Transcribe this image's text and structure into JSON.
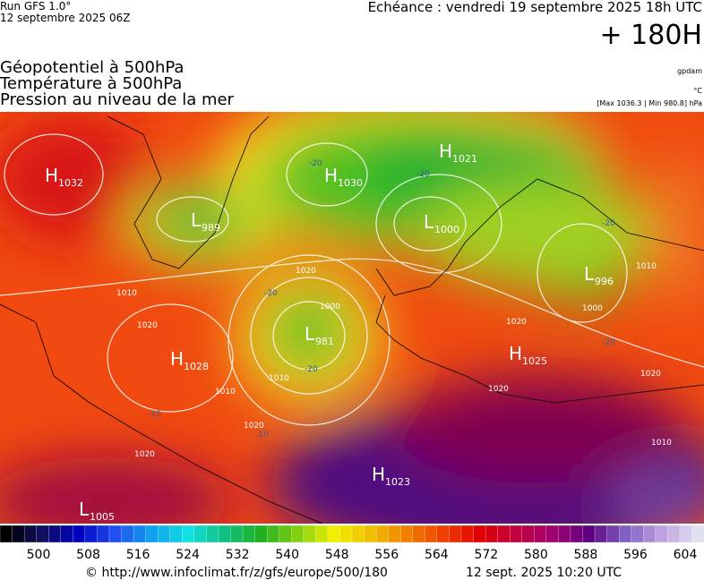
{
  "header": {
    "run": "Run GFS 1.0°",
    "run_date": "12 septembre 2025 06Z",
    "echeance": "Echéance : vendredi 19 septembre 2025 18h UTC",
    "lead": "+ 180H",
    "titles": [
      "Géopotentiel à 500hPa",
      "Température à 500hPa",
      "Pression au niveau de la mer"
    ],
    "unit_geo": "gpdam",
    "unit_temp": "°C",
    "pressure_range": "[Max 1036.3 | Min 980.8] hPa"
  },
  "centers": [
    {
      "kind": "H",
      "value": "1032"
    },
    {
      "kind": "L",
      "value": "989"
    },
    {
      "kind": "H",
      "value": "1030"
    },
    {
      "kind": "H",
      "value": "1021"
    },
    {
      "kind": "L",
      "value": "1000"
    },
    {
      "kind": "L",
      "value": "996"
    },
    {
      "kind": "L",
      "value": "981"
    },
    {
      "kind": "H",
      "value": "1028"
    },
    {
      "kind": "H",
      "value": "1025"
    },
    {
      "kind": "H",
      "value": "1023"
    },
    {
      "kind": "L",
      "value": "1005"
    }
  ],
  "isobar_labels": [
    "1020",
    "1010",
    "1020",
    "1020",
    "1020",
    "1000",
    "1010",
    "1020",
    "1010",
    "1020",
    "1010",
    "1000",
    "1020",
    "1010"
  ],
  "temperature_labels": [
    "-20",
    "-20",
    "-20",
    "-20",
    "-20",
    "-20",
    "-10",
    "-10"
  ],
  "colorbar": {
    "ticks": [
      500,
      508,
      516,
      524,
      532,
      540,
      548,
      556,
      564,
      572,
      580,
      588,
      596,
      604
    ]
  },
  "footer": {
    "source": "© http://www.infoclimat.fr/z/gfs/europe/500/180",
    "created": "12 sept. 2025 10:20 UTC"
  }
}
